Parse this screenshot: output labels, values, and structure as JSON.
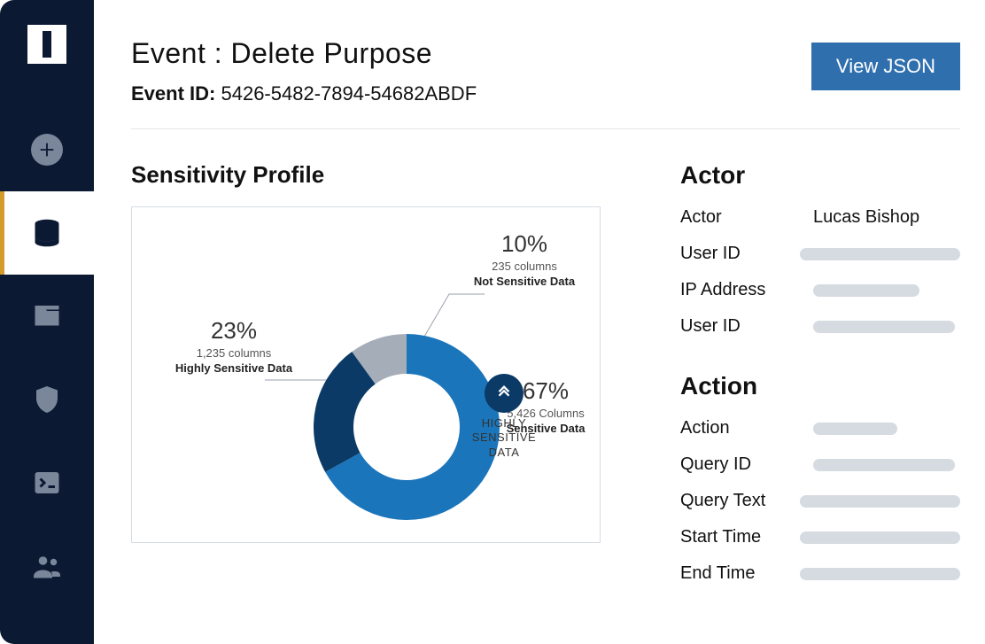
{
  "colors": {
    "sidebar_bg": "#0b1933",
    "sidebar_icon": "#7a8699",
    "accent_active": "#d49a2a",
    "primary_btn": "#2f6fad",
    "border": "#d6dbe1",
    "text": "#111111",
    "placeholder": "#d6dbe1"
  },
  "sidebar": {
    "items": [
      {
        "name": "add",
        "active": false
      },
      {
        "name": "database",
        "active": true
      },
      {
        "name": "folder",
        "active": false
      },
      {
        "name": "shield",
        "active": false
      },
      {
        "name": "terminal",
        "active": false
      },
      {
        "name": "users",
        "active": false
      }
    ]
  },
  "header": {
    "title": "Event : Delete Purpose",
    "event_id_label": "Event ID:",
    "event_id_value": "5426-5482-7894-54682ABDF",
    "view_json_label": "View JSON"
  },
  "profile": {
    "title": "Sensitivity Profile",
    "center_label": "HIGHLY\nSENSITIVE\nDATA",
    "donut": {
      "type": "donut",
      "inner_radius": 60,
      "outer_radius": 105,
      "background_color": "#ffffff",
      "slices": [
        {
          "label": "Sensitive Data",
          "percent": 67,
          "columns_text": "5,426 Columns",
          "color": "#1b75bb",
          "start_deg": 0,
          "end_deg": 241
        },
        {
          "label": "Highly Sensitive Data",
          "percent": 23,
          "columns_text": "1,235 columns",
          "color": "#0b3a66",
          "start_deg": 241,
          "end_deg": 324
        },
        {
          "label": "Not Sensitive Data",
          "percent": 10,
          "columns_text": "235 columns",
          "color": "#a5adb8",
          "start_deg": 324,
          "end_deg": 360
        }
      ]
    }
  },
  "details": {
    "actor": {
      "title": "Actor",
      "rows": [
        {
          "label": "Actor",
          "value": "Lucas Bishop",
          "placeholder_width": 0
        },
        {
          "label": "User ID",
          "value": "",
          "placeholder_width": 200
        },
        {
          "label": "IP Address",
          "value": "",
          "placeholder_width": 120
        },
        {
          "label": "User ID",
          "value": "",
          "placeholder_width": 160
        }
      ]
    },
    "action": {
      "title": "Action",
      "rows": [
        {
          "label": "Action",
          "value": "",
          "placeholder_width": 95
        },
        {
          "label": "Query ID",
          "value": "",
          "placeholder_width": 160
        },
        {
          "label": "Query Text",
          "value": "",
          "placeholder_width": 200
        },
        {
          "label": "Start Time",
          "value": "",
          "placeholder_width": 200
        },
        {
          "label": "End Time",
          "value": "",
          "placeholder_width": 200
        }
      ]
    }
  }
}
